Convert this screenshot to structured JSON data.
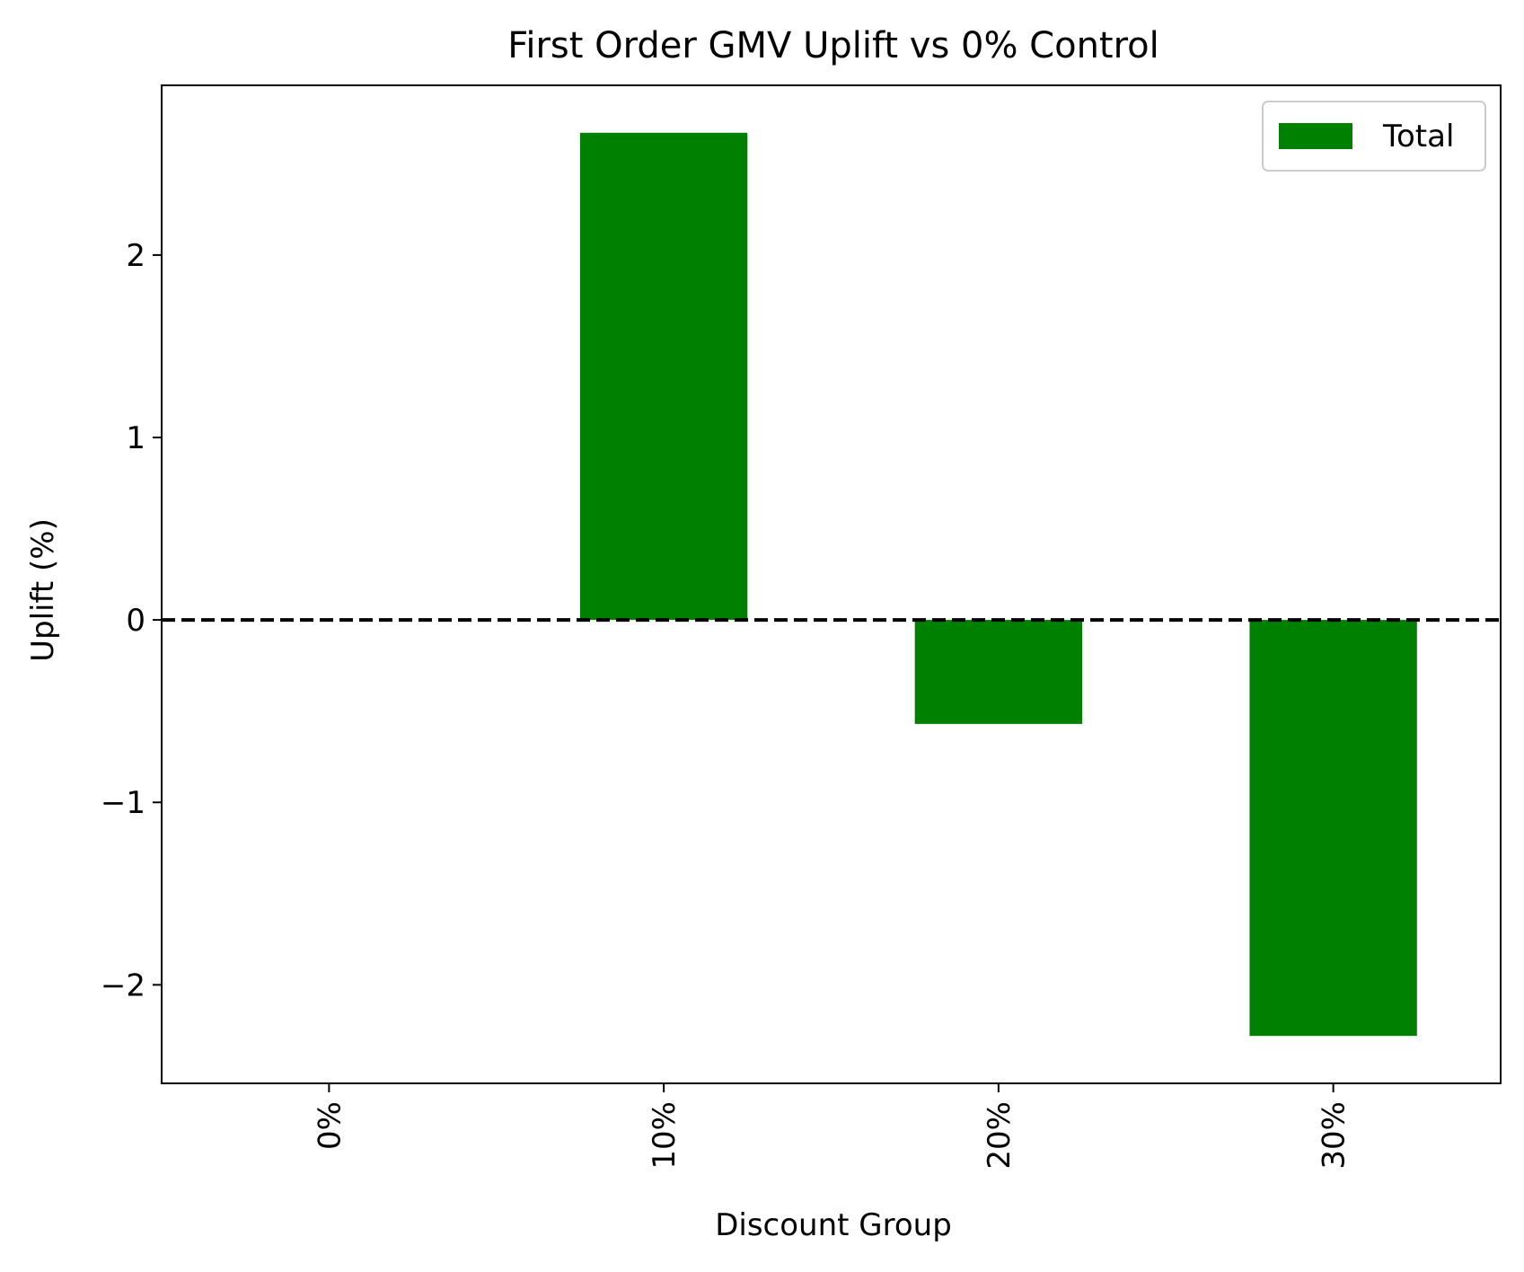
{
  "chart_data": {
    "type": "bar",
    "title": "First Order GMV Uplift vs 0% Control",
    "xlabel": "Discount Group",
    "ylabel": "Uplift (%)",
    "categories": [
      "0%",
      "10%",
      "20%",
      "30%"
    ],
    "series": [
      {
        "name": "Total",
        "values": [
          0,
          2.67,
          -0.57,
          -2.28
        ],
        "color": "#008000"
      }
    ],
    "ylim": [
      -2.54,
      2.93
    ],
    "yticks": [
      -2,
      -1,
      0,
      1,
      2
    ],
    "ytick_labels": [
      "−2",
      "−1",
      "0",
      "1",
      "2"
    ],
    "reference_line": {
      "y": 0,
      "style": "dashed",
      "color": "#000000"
    },
    "legend_position": "top-right",
    "grid": false,
    "xtick_rotation": "vertical"
  }
}
